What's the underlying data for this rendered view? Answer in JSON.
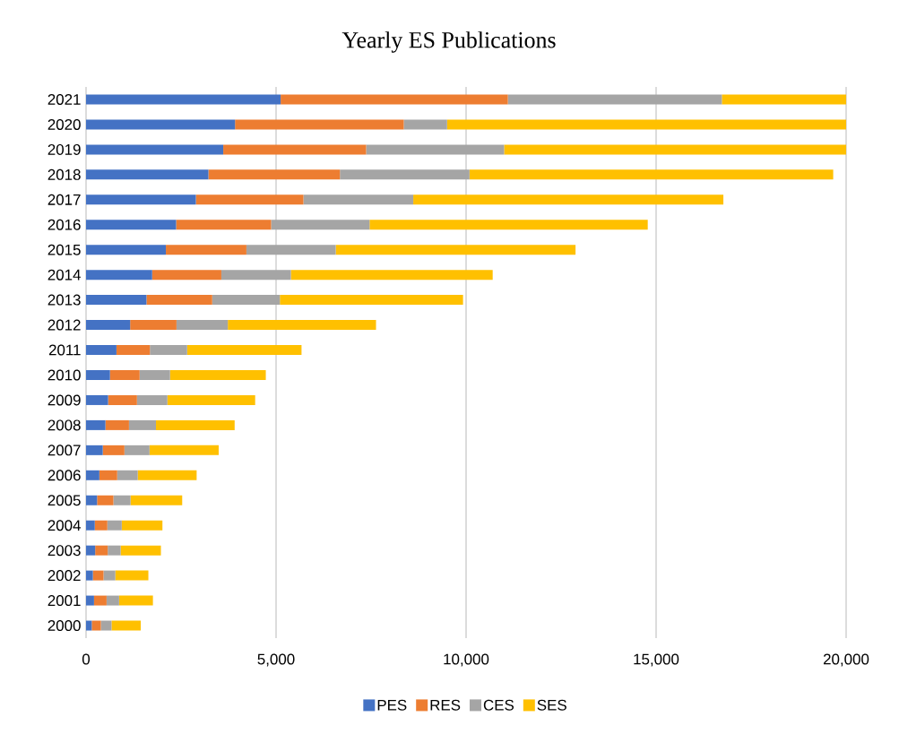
{
  "chart_data": {
    "type": "bar",
    "orientation": "horizontal",
    "stacked": true,
    "title": "Yearly ES Publications",
    "categories": [
      "2021",
      "2020",
      "2019",
      "2018",
      "2017",
      "2016",
      "2015",
      "2014",
      "2013",
      "2012",
      "2011",
      "2010",
      "2009",
      "2008",
      "2007",
      "2006",
      "2005",
      "2004",
      "2003",
      "2002",
      "2001",
      "2000"
    ],
    "series": [
      {
        "name": "PES",
        "color": "#4472c4",
        "values": [
          5120,
          3920,
          3610,
          3220,
          2890,
          2370,
          2100,
          1740,
          1590,
          1160,
          800,
          630,
          580,
          510,
          440,
          350,
          290,
          230,
          240,
          180,
          210,
          150
        ]
      },
      {
        "name": "RES",
        "color": "#ed7d31",
        "values": [
          5980,
          4440,
          3760,
          3460,
          2830,
          2500,
          2120,
          1820,
          1730,
          1220,
          880,
          780,
          760,
          620,
          570,
          470,
          430,
          330,
          330,
          280,
          330,
          240
        ]
      },
      {
        "name": "CES",
        "color": "#a5a5a5",
        "values": [
          5630,
          1140,
          3630,
          3410,
          2890,
          2590,
          2350,
          1830,
          1780,
          1350,
          980,
          800,
          800,
          710,
          660,
          540,
          450,
          380,
          340,
          310,
          330,
          280
        ]
      },
      {
        "name": "SES",
        "color": "#ffc000",
        "values": [
          3270,
          10500,
          9000,
          9570,
          8160,
          7320,
          6310,
          5310,
          4820,
          3900,
          3010,
          2520,
          2310,
          2070,
          1820,
          1550,
          1360,
          1070,
          1060,
          870,
          890,
          770
        ]
      }
    ],
    "xlim": [
      0,
      20000
    ],
    "xticks": [
      {
        "value": 0,
        "label": "0"
      },
      {
        "value": 5000,
        "label": "5,000"
      },
      {
        "value": 10000,
        "label": "10,000"
      },
      {
        "value": 15000,
        "label": "15,000"
      },
      {
        "value": 20000,
        "label": "20,000"
      }
    ],
    "grid": "x",
    "legend": "bottom"
  }
}
